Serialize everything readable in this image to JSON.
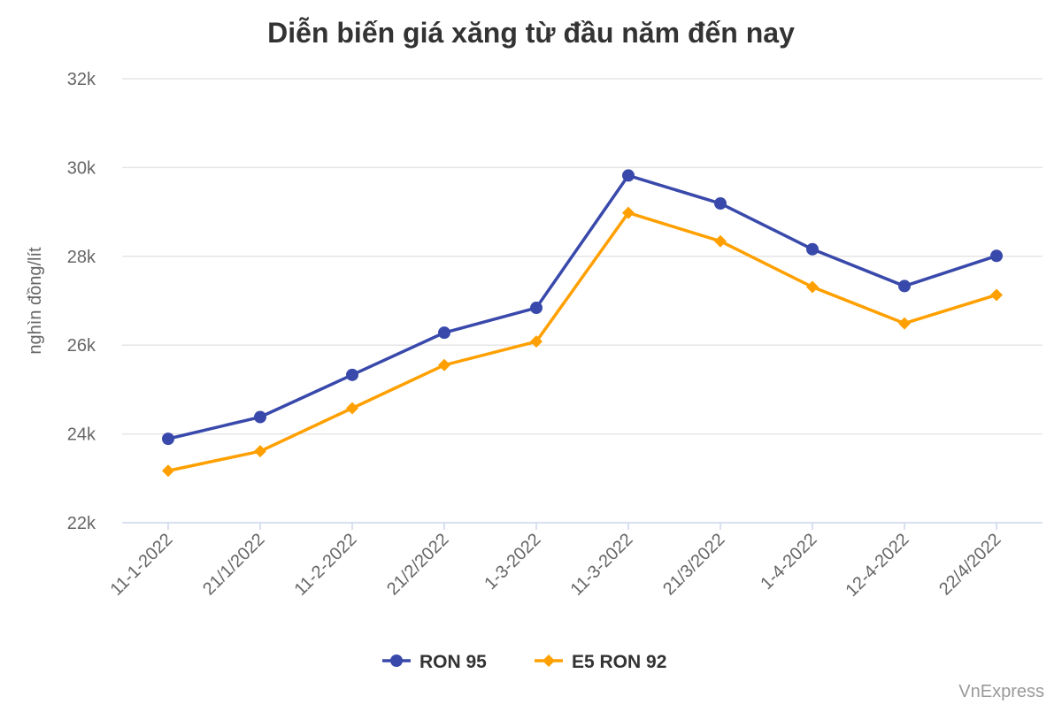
{
  "chart_data": {
    "type": "line",
    "title": "Diễn biến giá xăng từ đầu năm đến nay",
    "ylabel": "nghìn đồng/lít",
    "xlabel": "",
    "categories": [
      "11-1-2022",
      "21/1/2022",
      "11-2-2022",
      "21/2/2022",
      "1-3-2022",
      "11-3-2022",
      "21/3/2022",
      "1-4-2022",
      "12-4-2022",
      "22/4/2022"
    ],
    "ylim": [
      22000,
      32000
    ],
    "yticks": [
      22000,
      24000,
      26000,
      28000,
      30000,
      32000
    ],
    "ytick_labels": [
      "22k",
      "24k",
      "26k",
      "28k",
      "30k",
      "32k"
    ],
    "grid": true,
    "legend_position": "bottom",
    "series": [
      {
        "name": "RON 95",
        "color": "#3949ab",
        "marker": "circle",
        "values": [
          23890,
          24380,
          25330,
          26280,
          26840,
          29820,
          29190,
          28160,
          27330,
          28010
        ]
      },
      {
        "name": "E5 RON 92",
        "color": "#ffa000",
        "marker": "diamond",
        "values": [
          23170,
          23610,
          24580,
          25550,
          26080,
          28980,
          28340,
          27310,
          26490,
          27130
        ]
      }
    ],
    "credit": "VnExpress"
  }
}
